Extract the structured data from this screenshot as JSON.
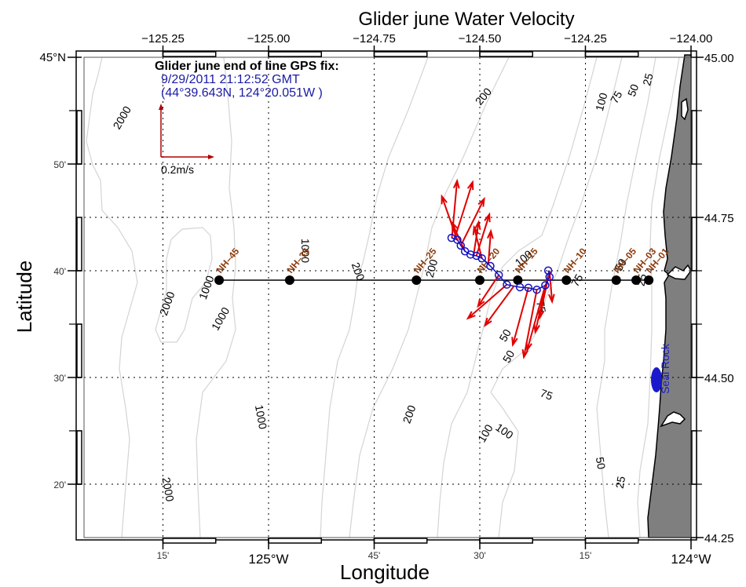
{
  "chart_data": {
    "type": "map",
    "title": "Glider june Water Velocity",
    "xlabel": "Longitude",
    "ylabel": "Latitude",
    "xlim": [
      -125.375,
      -124.0
    ],
    "ylim": [
      44.25,
      45.0
    ],
    "grid": true,
    "top_ticks": [
      {
        "value": -125.25,
        "label": "−125.25"
      },
      {
        "value": -125.0,
        "label": "−125.00"
      },
      {
        "value": -124.75,
        "label": "−124.75"
      },
      {
        "value": -124.5,
        "label": "−124.50"
      },
      {
        "value": -124.25,
        "label": "−124.25"
      },
      {
        "value": -124.0,
        "label": "−124.00"
      }
    ],
    "right_ticks": [
      {
        "value": 45.0,
        "label": "45.00"
      },
      {
        "value": 44.75,
        "label": "44.75"
      },
      {
        "value": 44.5,
        "label": "44.50"
      },
      {
        "value": 44.25,
        "label": "44.25"
      }
    ],
    "left_ticks": [
      {
        "value": 45.0,
        "label": "45°N",
        "major": true
      },
      {
        "value": 44.8333,
        "label": "50'",
        "major": false
      },
      {
        "value": 44.6667,
        "label": "40'",
        "major": false
      },
      {
        "value": 44.5,
        "label": "30'",
        "major": false
      },
      {
        "value": 44.3333,
        "label": "20'",
        "major": false
      }
    ],
    "bottom_ticks": [
      {
        "value": -125.25,
        "label": "15'",
        "major": false
      },
      {
        "value": -125.0,
        "label": "125°W",
        "major": true
      },
      {
        "value": -124.75,
        "label": "45'",
        "major": false
      },
      {
        "value": -124.5,
        "label": "30'",
        "major": false
      },
      {
        "value": -124.25,
        "label": "15'",
        "major": false
      },
      {
        "value": -124.0,
        "label": "124°W",
        "major": true
      }
    ],
    "grid_lons": [
      -125.25,
      -125.0,
      -124.75,
      -124.5,
      -124.25
    ],
    "grid_lats": [
      44.8333,
      44.75,
      44.6667,
      44.5,
      44.3333
    ],
    "stations": [
      {
        "name": "NH–45",
        "lon": -125.117
      },
      {
        "name": "NH–35",
        "lon": -124.95
      },
      {
        "name": "NH–25",
        "lon": -124.65
      },
      {
        "name": "NH–20",
        "lon": -124.5
      },
      {
        "name": "NH–15",
        "lon": -124.41
      },
      {
        "name": "NH–10",
        "lon": -124.295
      },
      {
        "name": "NH–05",
        "lon": -124.177
      },
      {
        "name": "NH–03",
        "lon": -124.13
      },
      {
        "name": "NH–01",
        "lon": -124.1
      }
    ],
    "station_lat": 44.652,
    "glider_track": [
      {
        "lon": -124.567,
        "lat": 44.718
      },
      {
        "lon": -124.553,
        "lat": 44.715
      },
      {
        "lon": -124.545,
        "lat": 44.706
      },
      {
        "lon": -124.535,
        "lat": 44.697
      },
      {
        "lon": -124.522,
        "lat": 44.692
      },
      {
        "lon": -124.508,
        "lat": 44.69
      },
      {
        "lon": -124.495,
        "lat": 44.686
      },
      {
        "lon": -124.475,
        "lat": 44.674
      },
      {
        "lon": -124.455,
        "lat": 44.66
      },
      {
        "lon": -124.436,
        "lat": 44.645
      },
      {
        "lon": -124.405,
        "lat": 44.641
      },
      {
        "lon": -124.385,
        "lat": 44.64
      },
      {
        "lon": -124.365,
        "lat": 44.637
      },
      {
        "lon": -124.345,
        "lat": 44.644
      },
      {
        "lon": -124.335,
        "lat": 44.657
      },
      {
        "lon": -124.338,
        "lat": 44.667
      }
    ],
    "velocity_arrows": [
      {
        "lon": -124.566,
        "lat": 44.718,
        "u": 0.02,
        "v": 0.22
      },
      {
        "lon": -124.56,
        "lat": 44.716,
        "u": 0.07,
        "v": 0.22
      },
      {
        "lon": -124.553,
        "lat": 44.714,
        "u": -0.06,
        "v": 0.17
      },
      {
        "lon": -124.545,
        "lat": 44.706,
        "u": 0.09,
        "v": 0.18
      },
      {
        "lon": -124.535,
        "lat": 44.697,
        "u": -0.05,
        "v": 0.11
      },
      {
        "lon": -124.515,
        "lat": 44.69,
        "u": 0.02,
        "v": 0.13
      },
      {
        "lon": -124.508,
        "lat": 44.69,
        "u": 0.05,
        "v": 0.16
      },
      {
        "lon": -124.495,
        "lat": 44.686,
        "u": -0.03,
        "v": 0.12
      },
      {
        "lon": -124.48,
        "lat": 44.676,
        "u": 0.01,
        "v": 0.13
      },
      {
        "lon": -124.455,
        "lat": 44.66,
        "u": -0.08,
        "v": -0.12
      },
      {
        "lon": -124.436,
        "lat": 44.645,
        "u": -0.15,
        "v": -0.13
      },
      {
        "lon": -124.42,
        "lat": 44.642,
        "u": -0.11,
        "v": -0.15
      },
      {
        "lon": -124.385,
        "lat": 44.64,
        "u": -0.06,
        "v": -0.22
      },
      {
        "lon": -124.365,
        "lat": 44.637,
        "u": -0.05,
        "v": -0.26
      },
      {
        "lon": -124.345,
        "lat": 44.644,
        "u": -0.07,
        "v": -0.25
      },
      {
        "lon": -124.338,
        "lat": 44.66,
        "u": -0.05,
        "v": -0.22
      },
      {
        "lon": -124.335,
        "lat": 44.667,
        "u": 0.01,
        "v": -0.12
      },
      {
        "lon": -124.34,
        "lat": 44.65,
        "u": -0.03,
        "v": -0.14
      }
    ],
    "scale_arrow": {
      "label": "0.2m/s",
      "magnitude_ms": 0.2
    },
    "bathymetry_contours_m": [
      25,
      50,
      75,
      100,
      200,
      1000,
      2000
    ],
    "contour_labels": [
      {
        "text": "2000",
        "lon": -125.345,
        "lat": 44.905,
        "rot": -60
      },
      {
        "text": "1000",
        "lon": -124.915,
        "lat": 44.698,
        "rot": 90
      },
      {
        "text": "1000",
        "lon": -125.145,
        "lat": 44.64,
        "rot": -70
      },
      {
        "text": "2000",
        "lon": -125.238,
        "lat": 44.615,
        "rot": -70
      },
      {
        "text": "1000",
        "lon": -125.112,
        "lat": 44.591,
        "rot": -60
      },
      {
        "text": "200",
        "lon": -124.79,
        "lat": 44.665,
        "rot": 70
      },
      {
        "text": "200",
        "lon": -124.612,
        "lat": 44.67,
        "rot": -75
      },
      {
        "text": "100",
        "lon": -124.395,
        "lat": 44.685,
        "rot": -40
      },
      {
        "text": "75",
        "lon": -124.268,
        "lat": 44.651,
        "rot": -60
      },
      {
        "text": "50",
        "lon": -124.165,
        "lat": 44.675,
        "rot": -60
      },
      {
        "text": "25",
        "lon": -124.115,
        "lat": 44.652,
        "rot": -80
      },
      {
        "text": "75",
        "lon": -124.357,
        "lat": 44.61,
        "rot": 80
      },
      {
        "text": "50",
        "lon": -124.438,
        "lat": 44.565,
        "rot": -60
      },
      {
        "text": "50",
        "lon": -124.43,
        "lat": 44.532,
        "rot": -60
      },
      {
        "text": "75",
        "lon": -124.343,
        "lat": 44.472,
        "rot": 20
      },
      {
        "text": "100",
        "lon": -124.485,
        "lat": 44.412,
        "rot": -60
      },
      {
        "text": "100",
        "lon": -124.443,
        "lat": 44.415,
        "rot": 35
      },
      {
        "text": "50",
        "lon": -124.216,
        "lat": 44.366,
        "rot": 80
      },
      {
        "text": "25",
        "lon": -124.165,
        "lat": 44.336,
        "rot": -80
      },
      {
        "text": "200",
        "lon": -124.665,
        "lat": 44.442,
        "rot": -70
      },
      {
        "text": "1000",
        "lon": -125.02,
        "lat": 44.438,
        "rot": 80
      },
      {
        "text": "2000",
        "lon": -125.24,
        "lat": 44.325,
        "rot": 80
      },
      {
        "text": "200",
        "lon": -124.49,
        "lat": 44.938,
        "rot": -50
      },
      {
        "text": "100",
        "lon": -124.21,
        "lat": 44.93,
        "rot": -75
      },
      {
        "text": "75",
        "lon": -124.175,
        "lat": 44.937,
        "rot": -60
      },
      {
        "text": "50",
        "lon": -124.135,
        "lat": 44.948,
        "rot": -70
      },
      {
        "text": "25",
        "lon": -124.1,
        "lat": 44.965,
        "rot": -75
      }
    ],
    "landmark": {
      "name": "Seal Rock",
      "lon": -124.082,
      "lat": 44.497
    }
  },
  "gps_fix": {
    "title": "Glider june end of line GPS fix:",
    "datetime": "9/29/2011 21:12:52 GMT",
    "position": "(44°39.643N, 124°20.051W )"
  },
  "colors": {
    "arrow": "#e00000",
    "track": "#1010c0",
    "station_label": "#8b3a0a",
    "land": "#7f7f7f",
    "contour": "#d4d4d4",
    "landmark": "#1a1acc"
  }
}
